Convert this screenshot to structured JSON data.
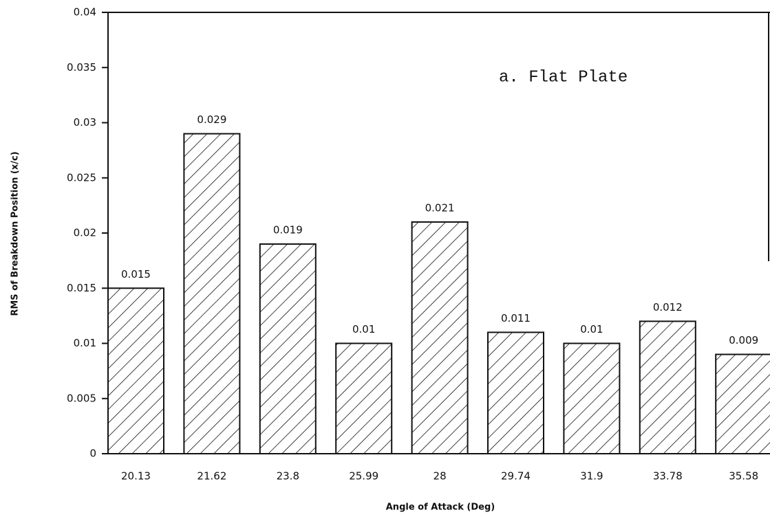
{
  "chart_data": {
    "type": "bar",
    "annotation": "a. Flat Plate",
    "x_label": "Angle of Attack (Deg)",
    "y_label": "RMS of Breakdown Position (x/c)",
    "categories": [
      "20.13",
      "21.62",
      "23.8",
      "25.99",
      "28",
      "29.74",
      "31.9",
      "33.78",
      "35.58"
    ],
    "values": [
      0.015,
      0.029,
      0.019,
      0.01,
      0.021,
      0.011,
      0.01,
      0.012,
      0.009
    ],
    "color": "#111111",
    "ylim": [
      0,
      0.04
    ],
    "yticks": [
      0,
      0.005,
      0.01,
      0.015,
      0.02,
      0.025,
      0.03,
      0.035,
      0.04
    ],
    "grid": false
  }
}
